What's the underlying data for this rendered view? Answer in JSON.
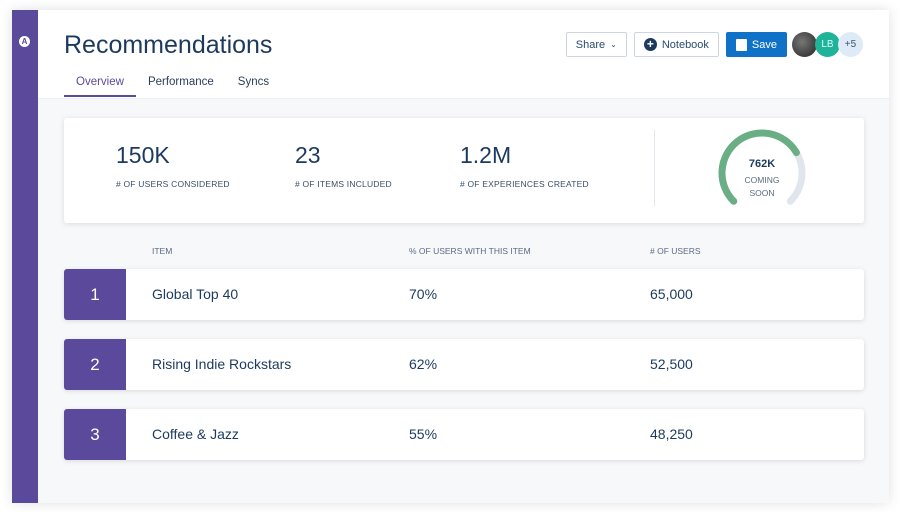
{
  "header": {
    "title": "Recommendations",
    "tabs": [
      {
        "label": "Overview",
        "active": true
      },
      {
        "label": "Performance"
      },
      {
        "label": "Syncs"
      }
    ],
    "share_label": "Share",
    "notebook_label": "Notebook",
    "save_label": "Save",
    "avatars": [
      {
        "initials": "",
        "color": "#333333"
      },
      {
        "initials": "LB",
        "color": "#1fb39a"
      }
    ],
    "more_count": "+5"
  },
  "stats": [
    {
      "value": "150K",
      "label": "# OF USERS CONSIDERED"
    },
    {
      "value": "23",
      "label": "# OF ITEMS INCLUDED"
    },
    {
      "value": "1.2M",
      "label": "# OF EXPERIENCES CREATED"
    }
  ],
  "gauge": {
    "value": "762K",
    "line1": "COMING",
    "line2": "SOON",
    "fill_fraction": 0.72,
    "fill_color": "#6aae86",
    "track_color": "#e1e6ec"
  },
  "table": {
    "columns": [
      "ITEM",
      "% OF USERS WITH THIS ITEM",
      "# OF USERS"
    ],
    "rows": [
      {
        "rank": "1",
        "item": "Global Top 40",
        "pct": "70%",
        "users": "65,000"
      },
      {
        "rank": "2",
        "item": "Rising Indie Rockstars",
        "pct": "62%",
        "users": "52,500"
      },
      {
        "rank": "3",
        "item": "Coffee & Jazz",
        "pct": "55%",
        "users": "48,250"
      }
    ]
  },
  "colors": {
    "accent": "#5b4a9b",
    "primary": "#0f72c6"
  }
}
